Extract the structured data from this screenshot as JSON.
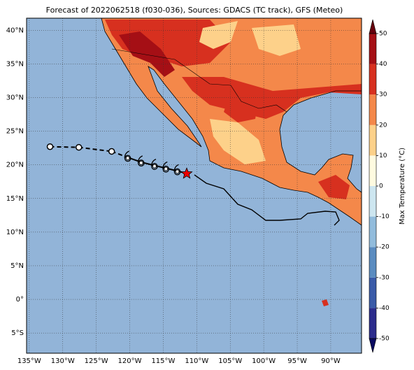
{
  "title": "Forecast of 2022062518 (f030-036), Sources: GDACS (TC track), GFS (Meteo)",
  "map": {
    "lonlim": [
      -135.4,
      -85.4
    ],
    "latlim": [
      -8.0,
      41.8
    ],
    "lonticks": [
      {
        "value": -135,
        "label": "135°W"
      },
      {
        "value": -130,
        "label": "130°W"
      },
      {
        "value": -125,
        "label": "125°W"
      },
      {
        "value": -120,
        "label": "120°W"
      },
      {
        "value": -115,
        "label": "115°W"
      },
      {
        "value": -110,
        "label": "110°W"
      },
      {
        "value": -105,
        "label": "105°W"
      },
      {
        "value": -100,
        "label": "100°W"
      },
      {
        "value": -95,
        "label": "95°W"
      },
      {
        "value": -90,
        "label": "90°W"
      }
    ],
    "latticks": [
      {
        "value": 40,
        "label": "40°N"
      },
      {
        "value": 35,
        "label": "35°N"
      },
      {
        "value": 30,
        "label": "30°N"
      },
      {
        "value": 25,
        "label": "25°N"
      },
      {
        "value": 20,
        "label": "20°N"
      },
      {
        "value": 15,
        "label": "15°N"
      },
      {
        "value": 10,
        "label": "10°N"
      },
      {
        "value": 5,
        "label": "5°N"
      },
      {
        "value": 0,
        "label": "0°"
      },
      {
        "value": -5,
        "label": "5°S"
      }
    ],
    "ocean_color": "#92b4d8"
  },
  "colorbar": {
    "label": "Max Temperature (°C)",
    "ticks": [
      -50,
      -40,
      -30,
      -20,
      -10,
      0,
      10,
      20,
      30,
      40,
      50
    ],
    "colors": [
      "#2b2b8c",
      "#3a5ba8",
      "#5b8cc0",
      "#92bcdc",
      "#cde6f0",
      "#fffbe0",
      "#fdd18a",
      "#f4884a",
      "#d7301f",
      "#a50f15"
    ],
    "under_color": "#0a0a60",
    "over_color": "#67000d"
  },
  "track": [
    {
      "lon": -131.9,
      "lat": 22.7,
      "marker": "circle"
    },
    {
      "lon": -127.6,
      "lat": 22.6,
      "marker": "circle"
    },
    {
      "lon": -122.7,
      "lat": 22.0,
      "marker": "circle"
    },
    {
      "lon": -120.3,
      "lat": 21.1,
      "marker": "cyclone"
    },
    {
      "lon": -118.3,
      "lat": 20.4,
      "marker": "cyclone"
    },
    {
      "lon": -116.3,
      "lat": 19.9,
      "marker": "cyclone"
    },
    {
      "lon": -114.6,
      "lat": 19.5,
      "marker": "cyclone"
    },
    {
      "lon": -112.9,
      "lat": 19.1,
      "marker": "cyclone"
    },
    {
      "lon": -111.5,
      "lat": 18.7,
      "marker": "star"
    }
  ]
}
